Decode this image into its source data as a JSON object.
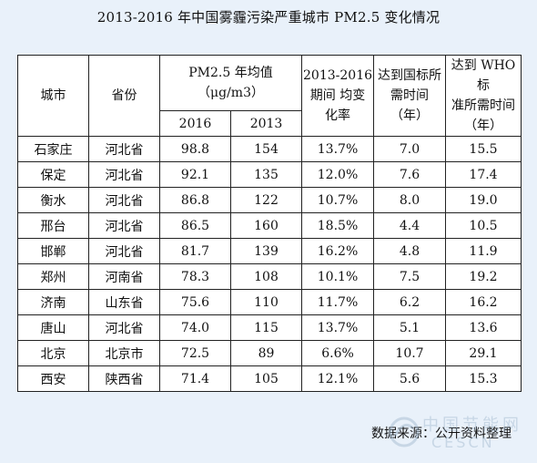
{
  "title": "2013-2016 年中国雾霾污染严重城市 PM2.5 变化情况",
  "headers": {
    "city": "城市",
    "province": "省份",
    "pm_line1": "PM2.5 年均值",
    "pm_line2": "（μg/m3）",
    "y2016": "2016",
    "y2013": "2013",
    "change_line1": "2013-2016",
    "change_line2": "期间 均变",
    "change_line3": "化率",
    "national_line1": "达到国标所",
    "national_line2": "需时间",
    "national_line3": "（年）",
    "who_line1": "达到 WHO标",
    "who_line2": "准所需时间",
    "who_line3": "（年）"
  },
  "rows": [
    {
      "city": "石家庄",
      "province": "河北省",
      "pm2016": "98.8",
      "pm2013": "154",
      "change": "13.7%",
      "national": "7.0",
      "who": "15.5"
    },
    {
      "city": "保定",
      "province": "河北省",
      "pm2016": "92.1",
      "pm2013": "135",
      "change": "12.0%",
      "national": "7.6",
      "who": "17.4"
    },
    {
      "city": "衡水",
      "province": "河北省",
      "pm2016": "86.8",
      "pm2013": "122",
      "change": "10.7%",
      "national": "8.0",
      "who": "19.0"
    },
    {
      "city": "邢台",
      "province": "河北省",
      "pm2016": "86.5",
      "pm2013": "160",
      "change": "18.5%",
      "national": "4.4",
      "who": "10.5"
    },
    {
      "city": "邯郸",
      "province": "河北省",
      "pm2016": "81.7",
      "pm2013": "139",
      "change": "16.2%",
      "national": "4.8",
      "who": "11.9"
    },
    {
      "city": "郑州",
      "province": "河南省",
      "pm2016": "78.3",
      "pm2013": "108",
      "change": "10.1%",
      "national": "7.5",
      "who": "19.2"
    },
    {
      "city": "济南",
      "province": "山东省",
      "pm2016": "75.6",
      "pm2013": "110",
      "change": "11.7%",
      "national": "6.2",
      "who": "16.2"
    },
    {
      "city": "唐山",
      "province": "河北省",
      "pm2016": "74.0",
      "pm2013": "115",
      "change": "13.7%",
      "national": "5.1",
      "who": "13.6"
    },
    {
      "city": "北京",
      "province": "北京市",
      "pm2016": "72.5",
      "pm2013": "89",
      "change": "6.6%",
      "national": "10.7",
      "who": "29.1"
    },
    {
      "city": "西安",
      "province": "陕西省",
      "pm2016": "71.4",
      "pm2013": "105",
      "change": "12.1%",
      "national": "5.6",
      "who": "15.3"
    }
  ],
  "source": "数据来源：公开资料整理",
  "watermark": {
    "text": "中国节能网",
    "sub": "CESCN"
  }
}
